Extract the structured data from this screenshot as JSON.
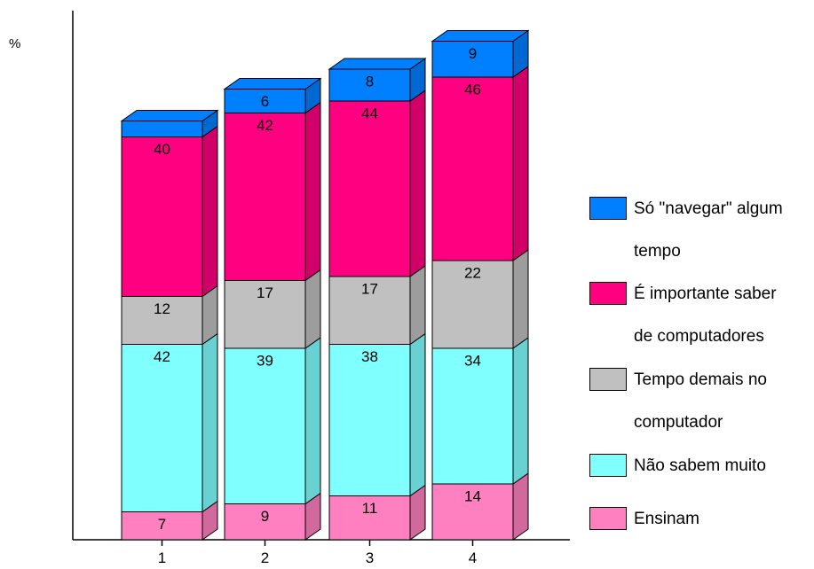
{
  "chart_data": {
    "type": "bar",
    "stacked": true,
    "three_d": true,
    "ylabel": "%",
    "categories": [
      "1",
      "2",
      "3",
      "4"
    ],
    "series": [
      {
        "name": "Ensinam",
        "color": "#FF80C0",
        "values": [
          7,
          9,
          11,
          14
        ]
      },
      {
        "name": "Não sabem muito",
        "color": "#80FFFF",
        "values": [
          42,
          39,
          38,
          34
        ]
      },
      {
        "name": "Tempo demais no computador",
        "color": "#C0C0C0",
        "values": [
          12,
          17,
          17,
          22
        ]
      },
      {
        "name": "É importante saber de computadores",
        "color": "#FF0080",
        "values": [
          40,
          42,
          44,
          46
        ]
      },
      {
        "name": "Só \"navegar\" algum tempo",
        "color": "#0080FF",
        "values": [
          4,
          6,
          8,
          9
        ]
      }
    ],
    "shown_labels": [
      [
        "7",
        "9",
        "11",
        "14"
      ],
      [
        "42",
        "39",
        "38",
        "34"
      ],
      [
        "12",
        "17",
        "17",
        "22"
      ],
      [
        "40",
        "42",
        "44",
        "46"
      ],
      [
        "",
        "6",
        "8",
        "9"
      ]
    ],
    "legend_position": "right"
  },
  "legend": [
    {
      "line1": "Só \"navegar\" algum",
      "line2": "tempo",
      "color": "#0080FF"
    },
    {
      "line1": "É importante saber",
      "line2": "de computadores",
      "color": "#FF0080"
    },
    {
      "line1": "Tempo demais no",
      "line2": "computador",
      "color": "#C0C0C0"
    },
    {
      "line1": "Não sabem muito",
      "line2": "",
      "color": "#80FFFF"
    },
    {
      "line1": "Ensinam",
      "line2": "",
      "color": "#FF80C0"
    }
  ],
  "unit_label": "%"
}
